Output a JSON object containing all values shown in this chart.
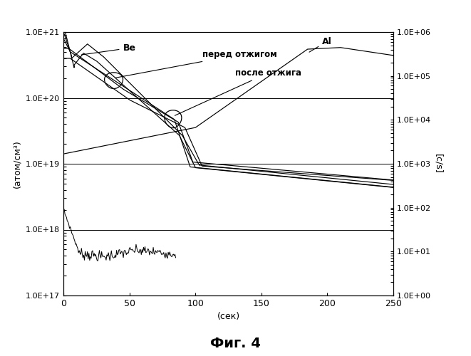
{
  "title": "Фиг. 4",
  "xlabel": "(сек)",
  "ylabel_left": "(атом/см³)",
  "ylabel_right": "[c/s]",
  "xlim": [
    0,
    250
  ],
  "ylim_left": [
    1e+17,
    1e+21
  ],
  "ylim_right": [
    1.0,
    1000000.0
  ],
  "xticks": [
    0,
    50,
    100,
    150,
    200,
    250
  ],
  "yticks_left_vals": [
    1e+17,
    1e+18,
    1e+19,
    1e+20,
    1e+21
  ],
  "yticks_left_labels": [
    "1.0E+17",
    "1.0E+18",
    "1.0E+19",
    "1.0E+20",
    "1.0E+21"
  ],
  "yticks_right_vals": [
    1.0,
    10.0,
    100.0,
    1000.0,
    10000.0,
    100000.0,
    1000000.0
  ],
  "yticks_right_labels": [
    "1.0E+00",
    "1.0E+01",
    "1.0E+02",
    "1.0E+03",
    "1.0E+04",
    "1.0E+05",
    "1.0E+06"
  ],
  "annotation_be": "Be",
  "annotation_al": "Al",
  "annotation_before": "перед отжигом",
  "annotation_after": "после отжига",
  "bg_color": "#ffffff",
  "line_color": "#000000",
  "hline_y": [
    1e+18,
    1e+19,
    1e+20
  ]
}
